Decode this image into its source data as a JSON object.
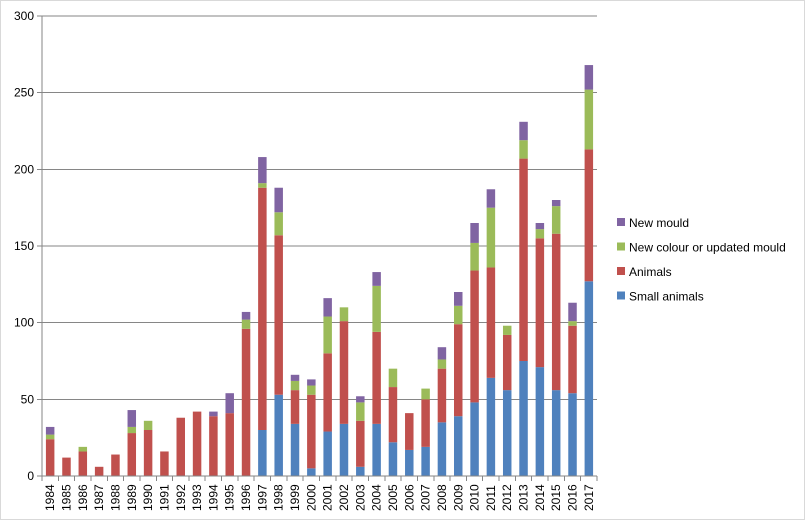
{
  "chart_data": {
    "type": "bar",
    "stacked": true,
    "title": "",
    "xlabel": "",
    "ylabel": "",
    "ylim": [
      0,
      300
    ],
    "yticks": [
      0,
      50,
      100,
      150,
      200,
      250,
      300
    ],
    "grid": true,
    "legend_position": "right",
    "categories": [
      "1984",
      "1985",
      "1986",
      "1987",
      "1988",
      "1989",
      "1990",
      "1991",
      "1992",
      "1993",
      "1994",
      "1995",
      "1996",
      "1997",
      "1998",
      "1999",
      "2000",
      "2001",
      "2002",
      "2003",
      "2004",
      "2005",
      "2006",
      "2007",
      "2008",
      "2009",
      "2010",
      "2011",
      "2012",
      "2013",
      "2014",
      "2015",
      "2016",
      "2017"
    ],
    "series": [
      {
        "name": "Small animals",
        "color": "#4f81bd",
        "values": [
          0,
          0,
          0,
          0,
          0,
          0,
          0,
          0,
          0,
          0,
          0,
          0,
          0,
          30,
          53,
          34,
          5,
          29,
          34,
          6,
          34,
          22,
          17,
          19,
          35,
          39,
          48,
          64,
          56,
          75,
          71,
          56,
          54,
          127
        ]
      },
      {
        "name": "Animals",
        "color": "#c0504d",
        "values": [
          24,
          12,
          16,
          6,
          14,
          28,
          30,
          16,
          38,
          42,
          39,
          41,
          96,
          158,
          104,
          22,
          48,
          51,
          67,
          30,
          60,
          36,
          24,
          31,
          35,
          60,
          86,
          72,
          36,
          132,
          84,
          102,
          44,
          86
        ]
      },
      {
        "name": "New colour or updated mould",
        "color": "#9bbb59",
        "values": [
          3,
          0,
          3,
          0,
          0,
          4,
          6,
          0,
          0,
          0,
          0,
          0,
          6,
          3,
          15,
          6,
          6,
          24,
          9,
          12,
          30,
          12,
          0,
          7,
          6,
          12,
          18,
          39,
          6,
          12,
          6,
          18,
          3,
          39
        ]
      },
      {
        "name": "New mould",
        "color": "#8064a2",
        "values": [
          5,
          0,
          0,
          0,
          0,
          11,
          0,
          0,
          0,
          0,
          3,
          13,
          5,
          17,
          16,
          4,
          4,
          12,
          0,
          4,
          9,
          0,
          0,
          0,
          8,
          9,
          13,
          12,
          0,
          12,
          4,
          4,
          12,
          16
        ]
      }
    ]
  }
}
